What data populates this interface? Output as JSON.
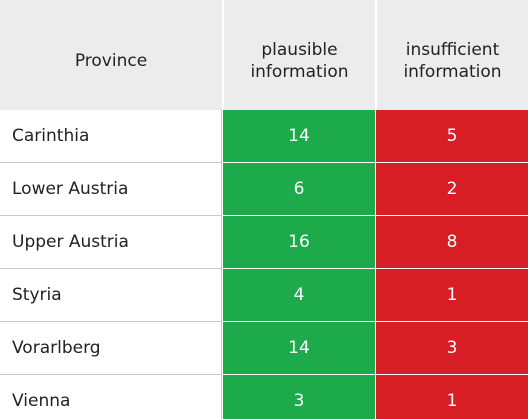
{
  "table": {
    "header": [
      "Province",
      "plausible information",
      "insufficient information"
    ],
    "rows": [
      [
        "Carinthia",
        14,
        5
      ],
      [
        "Lower Austria",
        6,
        2
      ],
      [
        "Upper Austria",
        16,
        8
      ],
      [
        "Styria",
        4,
        1
      ],
      [
        "Vorarlberg",
        14,
        3
      ],
      [
        "Vienna",
        3,
        1
      ]
    ]
  }
}
